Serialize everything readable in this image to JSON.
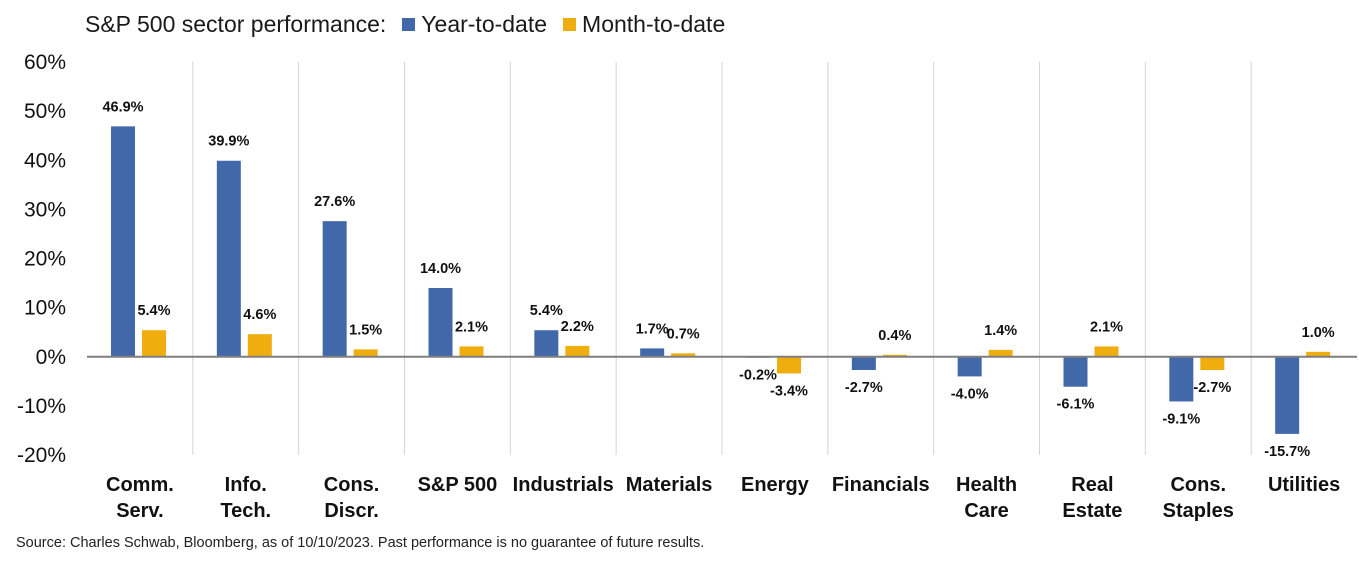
{
  "header": {
    "title": "S&P 500 sector performance:",
    "legend": [
      {
        "label": "Year-to-date",
        "color": "#4169AA"
      },
      {
        "label": "Month-to-date",
        "color": "#F0AE0E"
      }
    ]
  },
  "footer": {
    "source": "Source: Charles Schwab, Bloomberg, as of 10/10/2023.  Past performance is no guarantee of future results."
  },
  "chart_data": {
    "type": "bar",
    "title": "S&P 500 sector performance:",
    "xlabel": "",
    "ylabel": "",
    "ylim": [
      -20,
      60
    ],
    "yticks": [
      60,
      50,
      40,
      30,
      20,
      10,
      0,
      -10,
      -20
    ],
    "ytick_labels": [
      "60%",
      "50%",
      "40%",
      "30%",
      "20%",
      "10%",
      "0%",
      "-10%",
      "-20%"
    ],
    "categories": [
      [
        "Comm.",
        "Serv."
      ],
      [
        "Info.",
        "Tech."
      ],
      [
        "Cons.",
        "Discr."
      ],
      [
        "S&P 500"
      ],
      [
        "Industrials"
      ],
      [
        "Materials"
      ],
      [
        "Energy"
      ],
      [
        "Financials"
      ],
      [
        "Health",
        "Care"
      ],
      [
        "Real",
        "Estate"
      ],
      [
        "Cons.",
        "Staples"
      ],
      [
        "Utilities"
      ]
    ],
    "series": [
      {
        "name": "Year-to-date",
        "color": "#4169AA",
        "values": [
          46.9,
          39.9,
          27.6,
          14.0,
          5.4,
          1.7,
          -0.2,
          -2.7,
          -4.0,
          -6.1,
          -9.1,
          -15.7
        ],
        "labels": [
          "46.9%",
          "39.9%",
          "27.6%",
          "14.0%",
          "5.4%",
          "1.7%",
          "-0.2%",
          "-2.7%",
          "-4.0%",
          "-6.1%",
          "-9.1%",
          "-15.7%"
        ]
      },
      {
        "name": "Month-to-date",
        "color": "#F0AE0E",
        "values": [
          5.4,
          4.6,
          1.5,
          2.1,
          2.2,
          0.7,
          -3.4,
          0.4,
          1.4,
          2.1,
          -2.7,
          1.0
        ],
        "labels": [
          "5.4%",
          "4.6%",
          "1.5%",
          "2.1%",
          "2.2%",
          "0.7%",
          "-3.4%",
          "0.4%",
          "1.4%",
          "2.1%",
          "-2.7%",
          "1.0%"
        ]
      }
    ],
    "grid": "vertical category separators",
    "legend_position": "top"
  }
}
